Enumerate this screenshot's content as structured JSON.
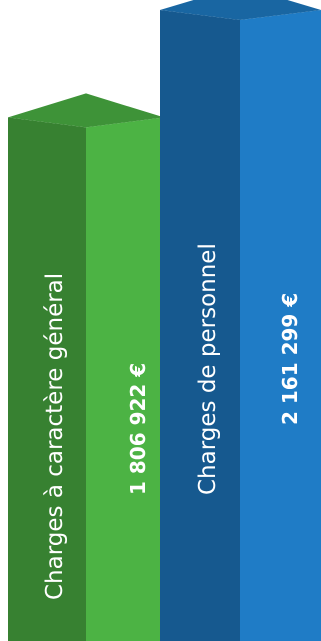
{
  "chart_data": {
    "type": "bar",
    "style": "3d-prism",
    "categories": [
      "Charges à caractère général",
      "Charges de personnel"
    ],
    "values": [
      1806922,
      2161299
    ],
    "value_labels": [
      "1 806 922 €",
      "2 161 299 €"
    ],
    "unit": "€",
    "colors": {
      "bar_1": "#4cb344",
      "bar_2": "#1f7cc6"
    },
    "title": "",
    "xlabel": "",
    "ylabel": "",
    "grid": false,
    "legend": "none"
  }
}
